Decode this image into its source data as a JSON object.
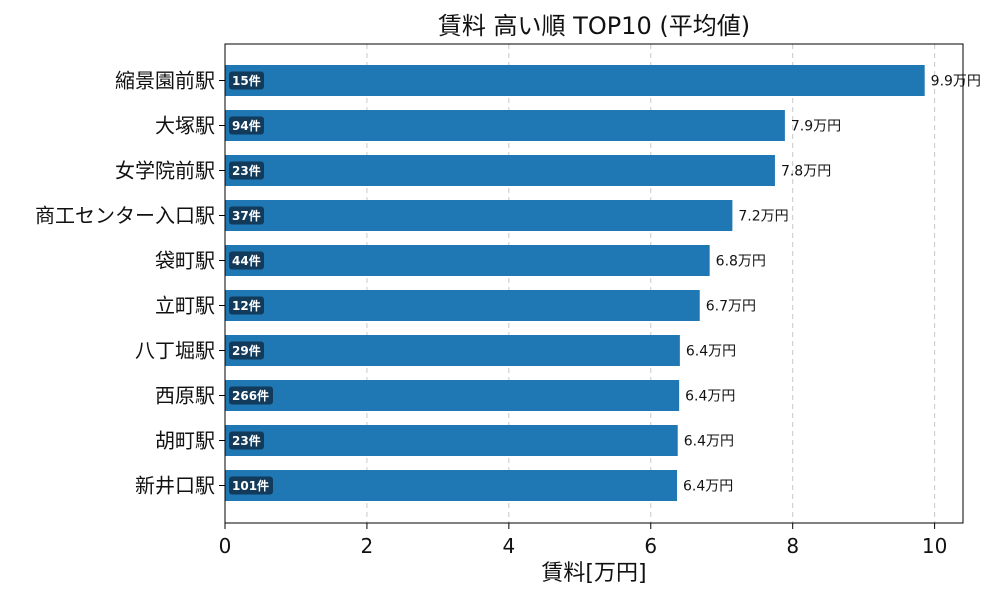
{
  "chart_data": {
    "type": "bar",
    "orientation": "horizontal",
    "title": "賃料 高い順 TOP10 (平均値)",
    "xlabel": "賃料[万円]",
    "ylabel": "",
    "xlim": [
      0,
      10.4
    ],
    "xticks": [
      "0",
      "2",
      "4",
      "6",
      "8",
      "10"
    ],
    "grid": "x-dashed",
    "categories": [
      "縮景園前駅",
      "大塚駅",
      "女学院前駅",
      "商工センター入口駅",
      "袋町駅",
      "立町駅",
      "八丁堀駅",
      "西原駅",
      "胡町駅",
      "新井口駅"
    ],
    "values": [
      9.86,
      7.89,
      7.75,
      7.15,
      6.83,
      6.69,
      6.41,
      6.4,
      6.38,
      6.37
    ],
    "value_labels": [
      "9.9万円",
      "7.9万円",
      "7.8万円",
      "7.2万円",
      "6.8万円",
      "6.7万円",
      "6.4万円",
      "6.4万円",
      "6.4万円",
      "6.4万円"
    ],
    "counts": [
      "15件",
      "94件",
      "23件",
      "37件",
      "44件",
      "12件",
      "29件",
      "266件",
      "23件",
      "101件"
    ],
    "bar_color": "#1f77b4",
    "count_badge_color": "#123a5a"
  }
}
